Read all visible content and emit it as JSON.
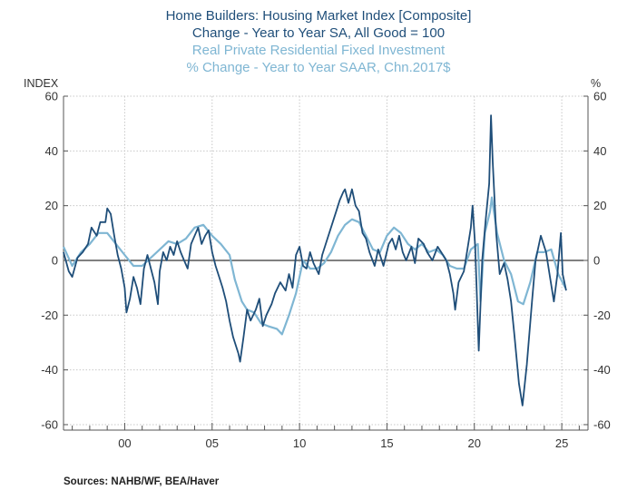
{
  "titles": {
    "line1": "Home Builders: Housing Market Index  [Composite]",
    "line2": "Change - Year to Year    SA, All Good = 100",
    "line3": "Real Private Residential Fixed Investment",
    "line4": "% Change - Year to Year    SAAR, Chn.2017$"
  },
  "source": "Sources:  NAHB/WF, BEA/Haver",
  "colors": {
    "series1": "#1f4e79",
    "series2": "#7fb6d3"
  },
  "chart_data": {
    "type": "line",
    "left_axis_label": "INDEX",
    "right_axis_label": "%",
    "ylim": [
      -62,
      60
    ],
    "xlim": [
      1996.5,
      2026.5
    ],
    "left_ticks": [
      60,
      40,
      20,
      0,
      -20,
      -40,
      -60
    ],
    "right_ticks": [
      60,
      40,
      20,
      0,
      -20,
      -40,
      -60
    ],
    "left_tick_labels": [
      "60",
      "40",
      "20",
      "0",
      "-20",
      "-40",
      "-60"
    ],
    "right_tick_labels": [
      "60",
      "40",
      "20",
      "0",
      "-20",
      "-40",
      "-60"
    ],
    "x_ticks": [
      2000,
      2005,
      2010,
      2015,
      2020,
      2025
    ],
    "x_tick_labels": [
      "00",
      "05",
      "10",
      "15",
      "20",
      "25"
    ],
    "grid": true,
    "series": [
      {
        "points": [
          [
            1996.5,
            3
          ],
          [
            1996.8,
            -4
          ],
          [
            1997.0,
            -6
          ],
          [
            1997.3,
            1
          ],
          [
            1997.6,
            3
          ],
          [
            1997.9,
            6
          ],
          [
            1998.1,
            12
          ],
          [
            1998.4,
            9
          ],
          [
            1998.6,
            14
          ],
          [
            1998.9,
            14
          ],
          [
            1999.0,
            19
          ],
          [
            1999.2,
            17
          ],
          [
            1999.4,
            9
          ],
          [
            1999.6,
            2
          ],
          [
            1999.8,
            -3
          ],
          [
            2000.0,
            -10
          ],
          [
            2000.1,
            -19
          ],
          [
            2000.3,
            -14
          ],
          [
            2000.5,
            -6
          ],
          [
            2000.7,
            -10
          ],
          [
            2000.9,
            -16
          ],
          [
            2001.1,
            -3
          ],
          [
            2001.3,
            2
          ],
          [
            2001.5,
            -3
          ],
          [
            2001.7,
            -8
          ],
          [
            2001.9,
            -16
          ],
          [
            2002.0,
            -4
          ],
          [
            2002.2,
            3
          ],
          [
            2002.4,
            0
          ],
          [
            2002.6,
            5
          ],
          [
            2002.8,
            2
          ],
          [
            2003.0,
            7
          ],
          [
            2003.2,
            3
          ],
          [
            2003.4,
            0
          ],
          [
            2003.6,
            -3
          ],
          [
            2003.8,
            6
          ],
          [
            2004.0,
            9
          ],
          [
            2004.2,
            12
          ],
          [
            2004.4,
            6
          ],
          [
            2004.6,
            9
          ],
          [
            2004.8,
            11
          ],
          [
            2005.0,
            3
          ],
          [
            2005.2,
            -2
          ],
          [
            2005.4,
            -6
          ],
          [
            2005.6,
            -10
          ],
          [
            2005.8,
            -15
          ],
          [
            2006.0,
            -22
          ],
          [
            2006.2,
            -28
          ],
          [
            2006.5,
            -34
          ],
          [
            2006.6,
            -37
          ],
          [
            2006.8,
            -28
          ],
          [
            2007.0,
            -18
          ],
          [
            2007.2,
            -22
          ],
          [
            2007.5,
            -18
          ],
          [
            2007.7,
            -14
          ],
          [
            2007.9,
            -24
          ],
          [
            2008.1,
            -20
          ],
          [
            2008.4,
            -16
          ],
          [
            2008.6,
            -12
          ],
          [
            2008.9,
            -8
          ],
          [
            2009.2,
            -11
          ],
          [
            2009.4,
            -5
          ],
          [
            2009.6,
            -10
          ],
          [
            2009.8,
            2
          ],
          [
            2010.0,
            5
          ],
          [
            2010.2,
            -2
          ],
          [
            2010.4,
            -3
          ],
          [
            2010.6,
            3
          ],
          [
            2010.8,
            -1
          ],
          [
            2011.1,
            -5
          ],
          [
            2011.3,
            2
          ],
          [
            2011.6,
            8
          ],
          [
            2011.9,
            14
          ],
          [
            2012.1,
            18
          ],
          [
            2012.3,
            22
          ],
          [
            2012.5,
            25
          ],
          [
            2012.6,
            26
          ],
          [
            2012.8,
            21
          ],
          [
            2013.0,
            26
          ],
          [
            2013.2,
            20
          ],
          [
            2013.4,
            18
          ],
          [
            2013.6,
            10
          ],
          [
            2013.8,
            8
          ],
          [
            2014.0,
            3
          ],
          [
            2014.3,
            -2
          ],
          [
            2014.5,
            4
          ],
          [
            2014.8,
            -2
          ],
          [
            2015.1,
            6
          ],
          [
            2015.3,
            8
          ],
          [
            2015.5,
            4
          ],
          [
            2015.7,
            9
          ],
          [
            2015.9,
            3
          ],
          [
            2016.1,
            0
          ],
          [
            2016.4,
            5
          ],
          [
            2016.6,
            -1
          ],
          [
            2016.8,
            8
          ],
          [
            2017.1,
            6
          ],
          [
            2017.3,
            3
          ],
          [
            2017.6,
            0
          ],
          [
            2017.9,
            5
          ],
          [
            2018.1,
            3
          ],
          [
            2018.4,
            0
          ],
          [
            2018.6,
            -5
          ],
          [
            2018.8,
            -12
          ],
          [
            2018.9,
            -18
          ],
          [
            2019.1,
            -8
          ],
          [
            2019.4,
            -4
          ],
          [
            2019.6,
            4
          ],
          [
            2019.8,
            12
          ],
          [
            2019.9,
            20
          ],
          [
            2020.05,
            5
          ],
          [
            2020.25,
            -33
          ],
          [
            2020.45,
            0
          ],
          [
            2020.65,
            15
          ],
          [
            2020.85,
            28
          ],
          [
            2020.95,
            53
          ],
          [
            2021.05,
            36
          ],
          [
            2021.25,
            10
          ],
          [
            2021.45,
            -5
          ],
          [
            2021.7,
            -1
          ],
          [
            2021.9,
            -7
          ],
          [
            2022.1,
            -15
          ],
          [
            2022.3,
            -28
          ],
          [
            2022.55,
            -45
          ],
          [
            2022.75,
            -53
          ],
          [
            2023.0,
            -38
          ],
          [
            2023.3,
            -15
          ],
          [
            2023.5,
            0
          ],
          [
            2023.8,
            9
          ],
          [
            2024.1,
            3
          ],
          [
            2024.3,
            -5
          ],
          [
            2024.55,
            -15
          ],
          [
            2024.75,
            -5
          ],
          [
            2024.95,
            10
          ],
          [
            2025.05,
            -5
          ],
          [
            2025.25,
            -11
          ]
        ]
      },
      {
        "points": [
          [
            1996.5,
            5
          ],
          [
            1997.0,
            -2
          ],
          [
            1997.5,
            3
          ],
          [
            1998.0,
            6
          ],
          [
            1998.5,
            10
          ],
          [
            1999.0,
            10
          ],
          [
            1999.5,
            6
          ],
          [
            2000.0,
            2
          ],
          [
            2000.5,
            -2
          ],
          [
            2001.0,
            -2
          ],
          [
            2001.5,
            1
          ],
          [
            2002.0,
            4
          ],
          [
            2002.5,
            7
          ],
          [
            2003.0,
            6
          ],
          [
            2003.5,
            8
          ],
          [
            2004.0,
            12
          ],
          [
            2004.5,
            13
          ],
          [
            2005.0,
            9
          ],
          [
            2005.5,
            6
          ],
          [
            2006.0,
            2
          ],
          [
            2006.3,
            -7
          ],
          [
            2006.7,
            -15
          ],
          [
            2007.0,
            -18
          ],
          [
            2007.4,
            -19
          ],
          [
            2007.8,
            -23
          ],
          [
            2008.2,
            -24
          ],
          [
            2008.7,
            -25
          ],
          [
            2009.0,
            -27
          ],
          [
            2009.4,
            -20
          ],
          [
            2009.8,
            -12
          ],
          [
            2010.2,
            0
          ],
          [
            2010.6,
            -3
          ],
          [
            2011.0,
            -3
          ],
          [
            2011.4,
            -1
          ],
          [
            2011.8,
            3
          ],
          [
            2012.2,
            9
          ],
          [
            2012.6,
            13
          ],
          [
            2013.0,
            15
          ],
          [
            2013.4,
            14
          ],
          [
            2013.8,
            9
          ],
          [
            2014.2,
            4
          ],
          [
            2014.6,
            3
          ],
          [
            2015.0,
            9
          ],
          [
            2015.4,
            12
          ],
          [
            2015.8,
            10
          ],
          [
            2016.2,
            6
          ],
          [
            2016.6,
            4
          ],
          [
            2017.0,
            6
          ],
          [
            2017.4,
            3
          ],
          [
            2017.8,
            4
          ],
          [
            2018.2,
            2
          ],
          [
            2018.6,
            -2
          ],
          [
            2019.0,
            -3
          ],
          [
            2019.4,
            -3
          ],
          [
            2019.8,
            4
          ],
          [
            2020.2,
            6
          ],
          [
            2020.35,
            -15
          ],
          [
            2020.6,
            10
          ],
          [
            2020.9,
            18
          ],
          [
            2021.0,
            23
          ],
          [
            2021.3,
            10
          ],
          [
            2021.7,
            0
          ],
          [
            2022.1,
            -5
          ],
          [
            2022.5,
            -15
          ],
          [
            2022.8,
            -16
          ],
          [
            2023.2,
            -8
          ],
          [
            2023.6,
            3
          ],
          [
            2024.0,
            3
          ],
          [
            2024.4,
            4
          ],
          [
            2024.8,
            -5
          ],
          [
            2025.2,
            -10
          ]
        ]
      }
    ]
  }
}
